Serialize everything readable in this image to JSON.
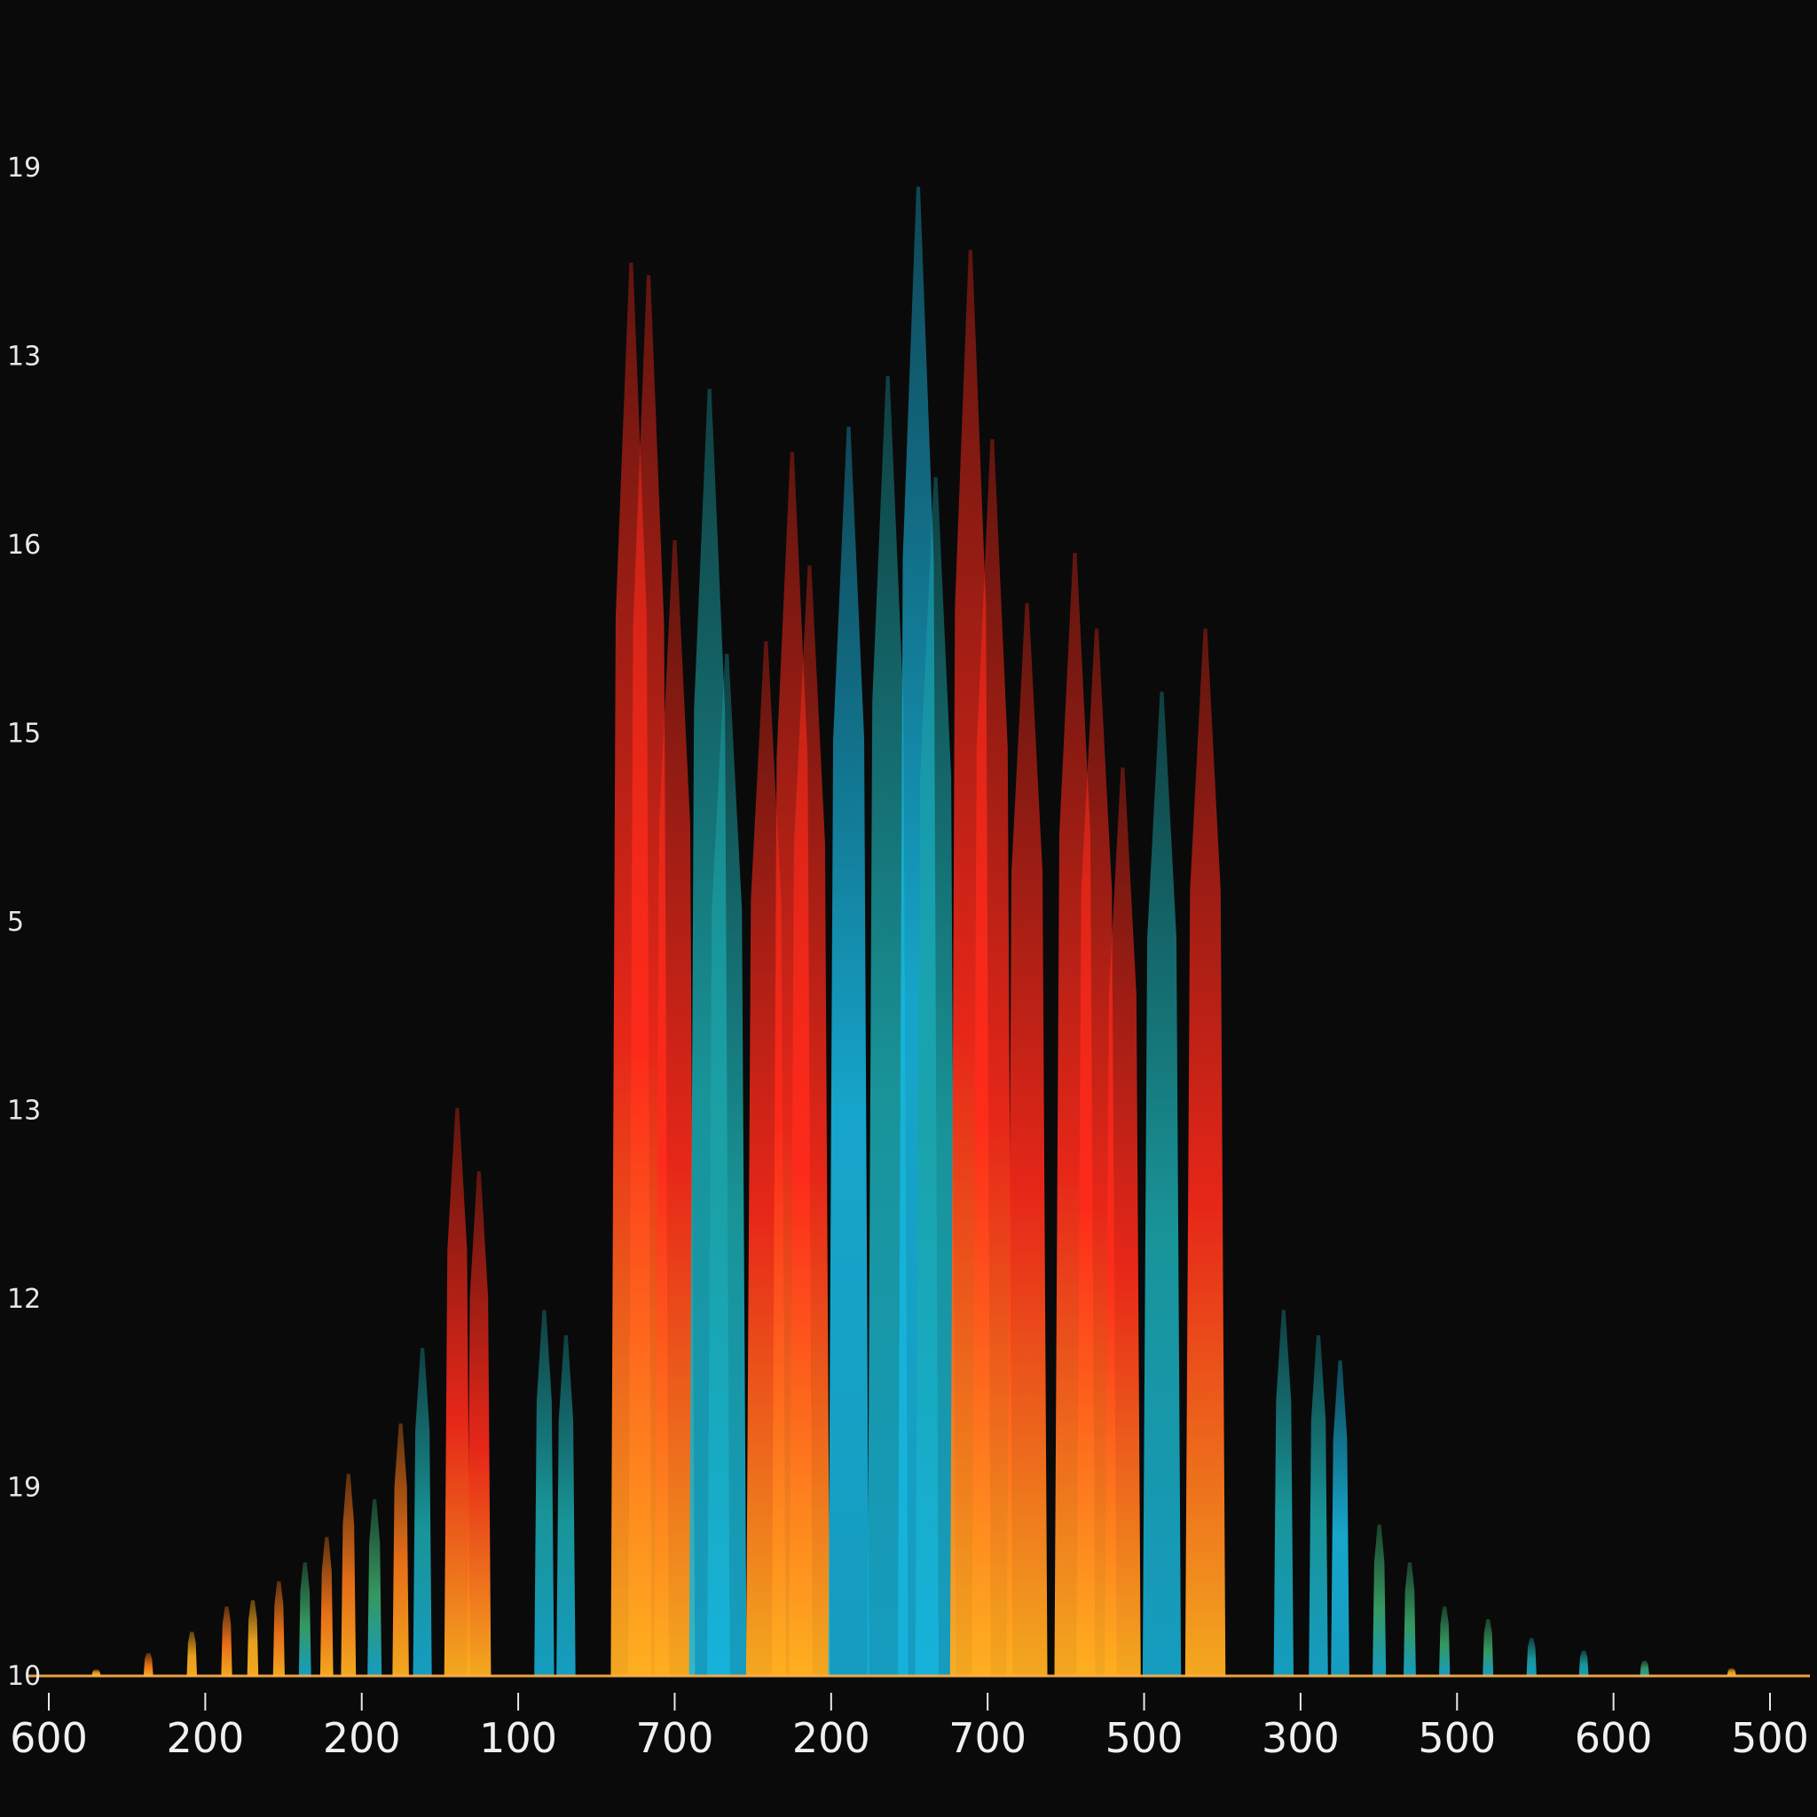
{
  "chart_data": {
    "type": "bar",
    "title": "",
    "xlabel": "",
    "ylabel": "",
    "grid": false,
    "legend": "none",
    "ylim": [
      0,
      13
    ],
    "y_ticks": [
      {
        "value": 0,
        "label": "10"
      },
      {
        "value": 1,
        "label": "19"
      },
      {
        "value": 2,
        "label": "12"
      },
      {
        "value": 3,
        "label": "13"
      },
      {
        "value": 4,
        "label": "5"
      },
      {
        "value": 5,
        "label": "15"
      },
      {
        "value": 6,
        "label": "16"
      },
      {
        "value": 7,
        "label": "13"
      },
      {
        "value": 8,
        "label": "19"
      }
    ],
    "x_ticks": [
      "600",
      "200",
      "200",
      "100",
      "700",
      "200",
      "700",
      "500",
      "300",
      "500",
      "600",
      "500"
    ],
    "colors": {
      "background": "#0a0a0a",
      "red": "#ff2a1a",
      "orange": "#ff7a1a",
      "amber": "#ffb020",
      "teal": "#1aa3a8",
      "cyan": "#17b6e0",
      "green": "#3aa86a"
    },
    "bars": [
      {
        "x": 0.8,
        "value": 0.05,
        "color": "amber"
      },
      {
        "x": 1.4,
        "value": 0.18,
        "color": "orange"
      },
      {
        "x": 1.9,
        "value": 0.35,
        "color": "amber"
      },
      {
        "x": 2.3,
        "value": 0.55,
        "color": "orange"
      },
      {
        "x": 2.6,
        "value": 0.6,
        "color": "amber"
      },
      {
        "x": 2.9,
        "value": 0.75,
        "color": "orange"
      },
      {
        "x": 3.2,
        "value": 0.9,
        "color": "green"
      },
      {
        "x": 3.45,
        "value": 1.1,
        "color": "orange"
      },
      {
        "x": 3.7,
        "value": 1.6,
        "color": "orange"
      },
      {
        "x": 4.0,
        "value": 1.4,
        "color": "green"
      },
      {
        "x": 4.3,
        "value": 2.0,
        "color": "orange"
      },
      {
        "x": 4.55,
        "value": 2.6,
        "color": "teal"
      },
      {
        "x": 4.95,
        "value": 4.5,
        "color": "red"
      },
      {
        "x": 5.2,
        "value": 4.0,
        "color": "red"
      },
      {
        "x": 5.95,
        "value": 2.9,
        "color": "teal"
      },
      {
        "x": 6.2,
        "value": 2.7,
        "color": "teal"
      },
      {
        "x": 6.95,
        "value": 11.2,
        "color": "red"
      },
      {
        "x": 7.15,
        "value": 11.1,
        "color": "red"
      },
      {
        "x": 7.45,
        "value": 9.0,
        "color": "red"
      },
      {
        "x": 7.85,
        "value": 10.2,
        "color": "teal"
      },
      {
        "x": 8.05,
        "value": 8.1,
        "color": "teal"
      },
      {
        "x": 8.5,
        "value": 8.2,
        "color": "red"
      },
      {
        "x": 8.8,
        "value": 9.7,
        "color": "red"
      },
      {
        "x": 9.0,
        "value": 8.8,
        "color": "red"
      },
      {
        "x": 9.45,
        "value": 9.9,
        "color": "cyan"
      },
      {
        "x": 9.9,
        "value": 10.3,
        "color": "teal"
      },
      {
        "x": 10.25,
        "value": 11.8,
        "color": "cyan"
      },
      {
        "x": 10.45,
        "value": 9.5,
        "color": "teal"
      },
      {
        "x": 10.85,
        "value": 11.3,
        "color": "red"
      },
      {
        "x": 11.1,
        "value": 9.8,
        "color": "red"
      },
      {
        "x": 11.5,
        "value": 8.5,
        "color": "red"
      },
      {
        "x": 12.05,
        "value": 8.9,
        "color": "red"
      },
      {
        "x": 12.3,
        "value": 8.3,
        "color": "red"
      },
      {
        "x": 12.6,
        "value": 7.2,
        "color": "red"
      },
      {
        "x": 13.05,
        "value": 7.8,
        "color": "teal"
      },
      {
        "x": 13.55,
        "value": 8.3,
        "color": "red"
      },
      {
        "x": 14.45,
        "value": 2.9,
        "color": "teal"
      },
      {
        "x": 14.85,
        "value": 2.7,
        "color": "teal"
      },
      {
        "x": 15.1,
        "value": 2.5,
        "color": "cyan"
      },
      {
        "x": 15.55,
        "value": 1.2,
        "color": "green"
      },
      {
        "x": 15.9,
        "value": 0.9,
        "color": "green"
      },
      {
        "x": 16.3,
        "value": 0.55,
        "color": "green"
      },
      {
        "x": 16.8,
        "value": 0.45,
        "color": "green"
      },
      {
        "x": 17.3,
        "value": 0.3,
        "color": "teal"
      },
      {
        "x": 17.9,
        "value": 0.2,
        "color": "teal"
      },
      {
        "x": 18.6,
        "value": 0.12,
        "color": "green"
      },
      {
        "x": 19.6,
        "value": 0.06,
        "color": "amber"
      }
    ]
  }
}
